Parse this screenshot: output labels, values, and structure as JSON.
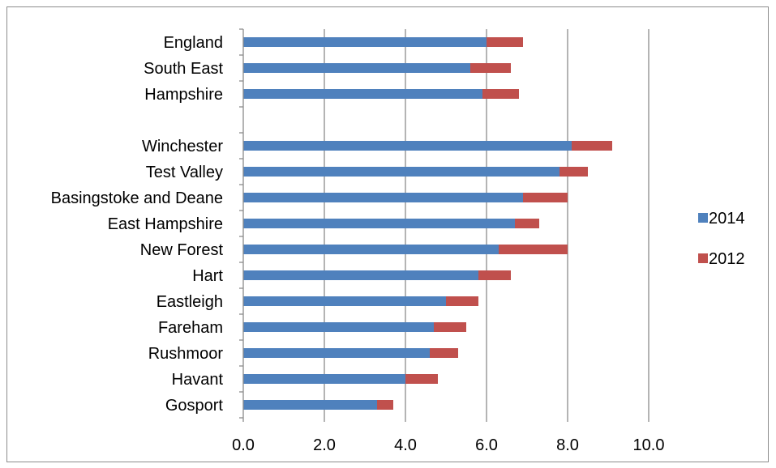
{
  "chart_data": {
    "type": "bar",
    "orientation": "horizontal",
    "stacked": true,
    "title": "",
    "xlabel": "",
    "ylabel": "",
    "categories": [
      "England",
      "South East",
      "Hampshire",
      "",
      "Winchester",
      "Test Valley",
      "Basingstoke and Deane",
      "East Hampshire",
      "New Forest",
      "Hart",
      "Eastleigh",
      "Fareham",
      "Rushmoor",
      "Havant",
      "Gosport"
    ],
    "series": [
      {
        "name": "2014",
        "color": "#4f81bd",
        "values": [
          6.0,
          5.6,
          5.9,
          null,
          8.1,
          7.8,
          6.9,
          6.7,
          6.3,
          5.8,
          5.0,
          4.7,
          4.6,
          4.0,
          3.3
        ]
      },
      {
        "name": "2012",
        "color": "#c0504d",
        "values": [
          0.9,
          1.0,
          0.9,
          null,
          1.0,
          0.7,
          1.1,
          0.6,
          1.7,
          0.8,
          0.8,
          0.8,
          0.7,
          0.8,
          0.4
        ]
      }
    ],
    "xlim": [
      0,
      10
    ],
    "xticks": [
      "0.0",
      "2.0",
      "4.0",
      "6.0",
      "8.0",
      "10.0"
    ],
    "xtick_values": [
      0,
      2,
      4,
      6,
      8,
      10
    ],
    "grid": "vertical major gridlines",
    "legend_position": "right"
  }
}
